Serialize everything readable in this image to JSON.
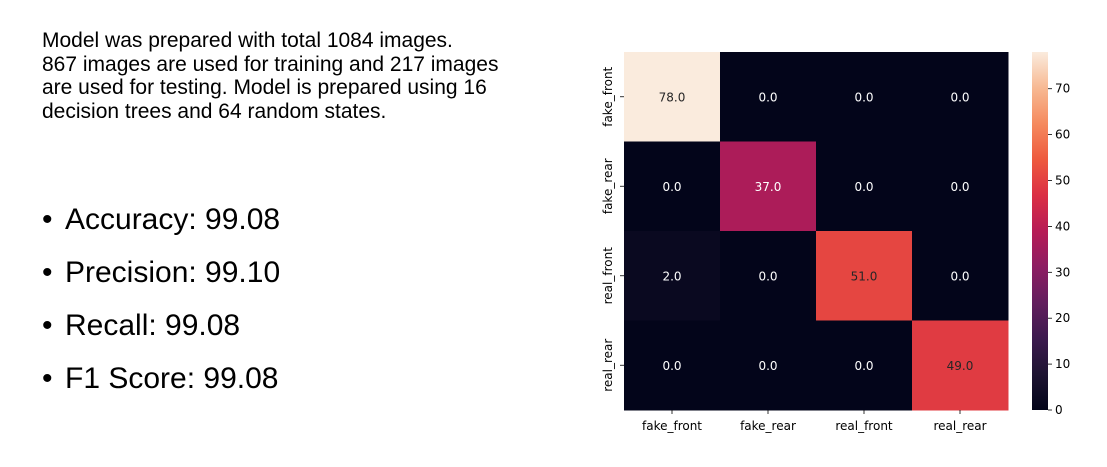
{
  "description": {
    "lines": [
      "Model was prepared with total 1084 images.",
      "867 images are used for training and 217 images",
      "are used for testing. Model is prepared using 16",
      "decision trees and 64 random states."
    ]
  },
  "metrics": [
    {
      "bullet": "•",
      "text": "Accuracy: 99.08"
    },
    {
      "bullet": "•",
      "text": "Precision: 99.10"
    },
    {
      "bullet": "•",
      "text": "Recall: 99.08"
    },
    {
      "bullet": "•",
      "text": "F1 Score: 99.08"
    }
  ],
  "chart_data": {
    "type": "heatmap",
    "title": "",
    "xlabel": "",
    "ylabel": "",
    "x_categories": [
      "fake_front",
      "fake_rear",
      "real_front",
      "real_rear"
    ],
    "y_categories": [
      "fake_front",
      "fake_rear",
      "real_front",
      "real_rear"
    ],
    "values": [
      [
        78.0,
        0.0,
        0.0,
        0.0
      ],
      [
        0.0,
        37.0,
        0.0,
        0.0
      ],
      [
        2.0,
        0.0,
        51.0,
        0.0
      ],
      [
        0.0,
        0.0,
        0.0,
        49.0
      ]
    ],
    "annotations": [
      [
        "78.0",
        "0.0",
        "0.0",
        "0.0"
      ],
      [
        "0.0",
        "37.0",
        "0.0",
        "0.0"
      ],
      [
        "2.0",
        "0.0",
        "51.0",
        "0.0"
      ],
      [
        "0.0",
        "0.0",
        "0.0",
        "49.0"
      ]
    ],
    "colormap": "rocket",
    "colorbar": {
      "min": 0,
      "max": 78,
      "ticks": [
        0,
        10,
        20,
        30,
        40,
        50,
        60,
        70
      ]
    }
  }
}
